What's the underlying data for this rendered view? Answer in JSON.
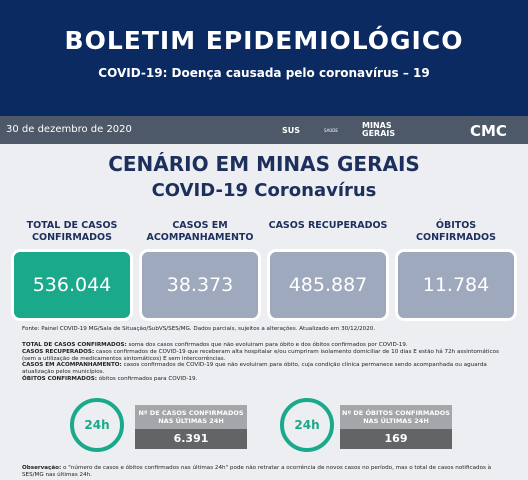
{
  "header": {
    "title": "BOLETIM EPIDEMIOLÓGICO",
    "subtitle": "COVID-19: Doença causada pelo coronavírus – 19"
  },
  "bar": {
    "date": "30 de dezembro de 2020",
    "logos": [
      "SUS",
      "SAÚDE",
      "MINAS GERAIS",
      "CMC"
    ]
  },
  "heading": {
    "title": "CENÁRIO EM MINAS GERAIS",
    "subtitle": "COVID-19 Coronavírus"
  },
  "cards": [
    {
      "label": "TOTAL DE CASOS CONFIRMADOS",
      "value": "536.044"
    },
    {
      "label": "CASOS EM ACOMPANHAMENTO",
      "value": "38.373"
    },
    {
      "label": "CASOS RECUPERADOS",
      "value": "485.887"
    },
    {
      "label": "ÓBITOS CONFIRMADOS",
      "value": "11.784"
    }
  ],
  "source": "Fonte: Painel COVID-19 MG/Sala de Situação/SubVS/SES/MG. Dados parciais, sujeitos a alterações. Atualizado em 30/12/2020.",
  "definitions": [
    {
      "term": "TOTAL DE CASOS CONFIRMADOS:",
      "text": "soma dos casos confirmados que não evoluiram para óbito e dos óbitos confirmados por COVID-19."
    },
    {
      "term": "CASOS RECUPERADOS:",
      "text": "casos confirmados de COVID-19 que receberam alta hospitalar e/ou cumpriram isolamento domiciliar de 10 dias E estão há 72h assintomáticos (sem a utilização de medicamentos sintomáticos) E sem intercorrências."
    },
    {
      "term": "CASOS EM ACOMPANHAMENTO:",
      "text": "casos confirmados de COVID-19 que não evoluiram para óbito, cuja condição clínica permanece sendo acompanhada ou aguarda atualização pelos municípios."
    },
    {
      "term": "ÓBITOS CONFIRMADOS:",
      "text": "óbitos confirmados para COVID-19."
    }
  ],
  "last24h": [
    {
      "icon": "24h",
      "label": "Nº DE CASOS CONFIRMADOS NAS ÚLTIMAS 24H",
      "value": "6.391"
    },
    {
      "icon": "24h",
      "label": "Nº DE ÓBITOS CONFIRMADOS NAS ÚLTIMAS 24H",
      "value": "169"
    }
  ],
  "observation": {
    "term": "Observação:",
    "text": "o \"número de casos e óbitos confirmados nas últimas 24h\" pode não retratar a ocorrência de novos casos no período, mas o total de casos notificados à SES/MG nas últimas 24h."
  }
}
